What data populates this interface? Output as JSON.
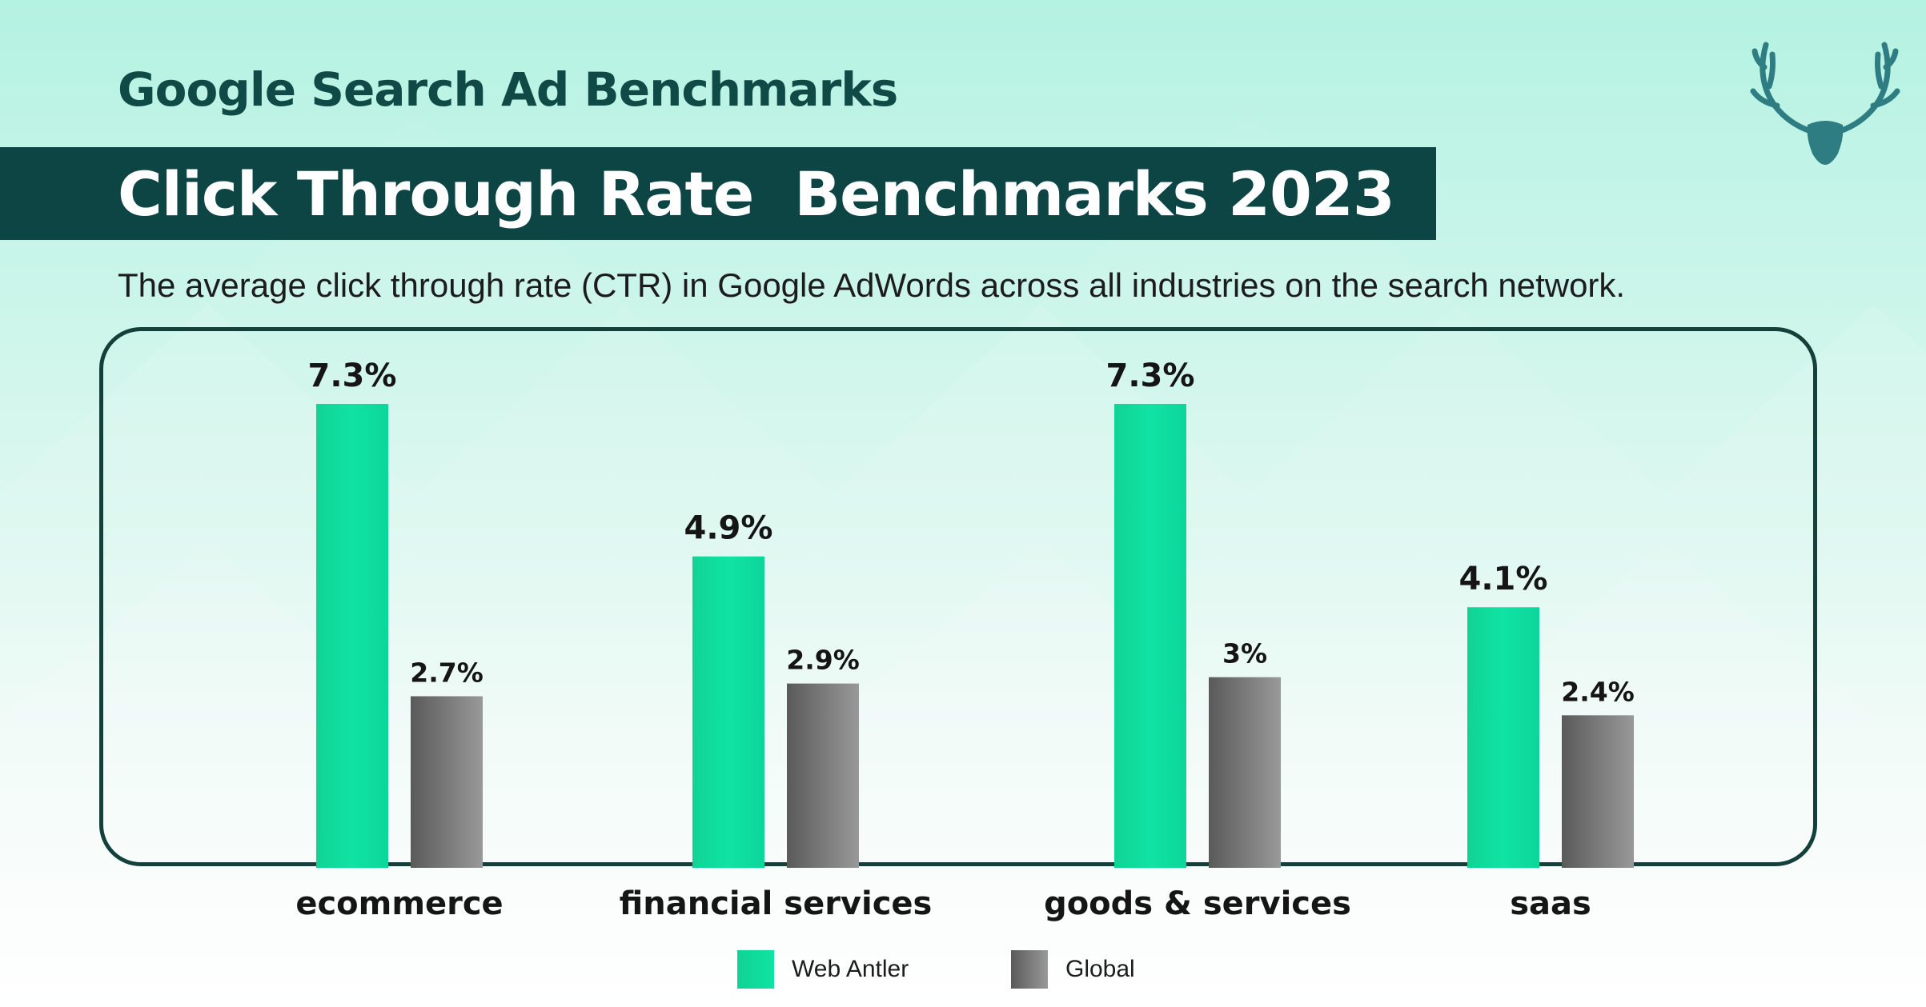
{
  "header": {
    "supertitle": "Google Search Ad Benchmarks",
    "title": "Click Through Rate  Benchmarks 2023",
    "subtitle": "The average click through rate (CTR) in Google AdWords across all industries on the search network."
  },
  "logo": {
    "icon": "deer-antler-icon",
    "color": "#2e7d82"
  },
  "colors": {
    "title_band": "#0c4543",
    "supertitle": "#0f4a47",
    "web_antler_bar": "#0fe0a0",
    "global_bar": "#777777",
    "frame": "#14403c"
  },
  "chart_data": {
    "type": "bar",
    "categories": [
      "ecommerce",
      "financial services",
      "goods & services",
      "saas"
    ],
    "series": [
      {
        "name": "Web Antler",
        "values": [
          7.3,
          4.9,
          7.3,
          4.1
        ],
        "labels": [
          "7.3%",
          "4.9%",
          "7.3%",
          "4.1%"
        ],
        "color": "#0fe0a0"
      },
      {
        "name": "Global",
        "values": [
          2.7,
          2.9,
          3,
          2.4
        ],
        "labels": [
          "2.7%",
          "2.9%",
          "3%",
          "2.4%"
        ],
        "color": "#777777"
      }
    ],
    "ylim": [
      0,
      7.3
    ],
    "grid": false,
    "legend_position": "bottom-center",
    "xlabel": "",
    "ylabel": ""
  },
  "legend": {
    "items": [
      {
        "label": "Web Antler",
        "color": "#0fe0a0"
      },
      {
        "label": "Global",
        "color": "#777777"
      }
    ]
  }
}
